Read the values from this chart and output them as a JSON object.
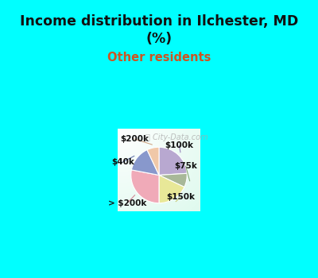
{
  "title": "Income distribution in Ilchester, MD\n(%)",
  "subtitle": "Other residents",
  "title_color": "#111111",
  "subtitle_color": "#cc5522",
  "background_cyan": "#00ffff",
  "labels": [
    "$100k",
    "$75k",
    "$150k",
    "> $200k",
    "$40k",
    "$200k"
  ],
  "values": [
    24.0,
    8.0,
    18.0,
    28.0,
    15.0,
    7.0
  ],
  "colors": [
    "#b8a8d0",
    "#a8b898",
    "#e8e898",
    "#f0aab8",
    "#8898cc",
    "#f0c8a8"
  ],
  "startangle": 90,
  "label_color": "#111111",
  "line_colors": [
    "#9988bb",
    "#88aa78",
    "#c8c878",
    "#d08898",
    "#6878aa",
    "#d0a888"
  ]
}
